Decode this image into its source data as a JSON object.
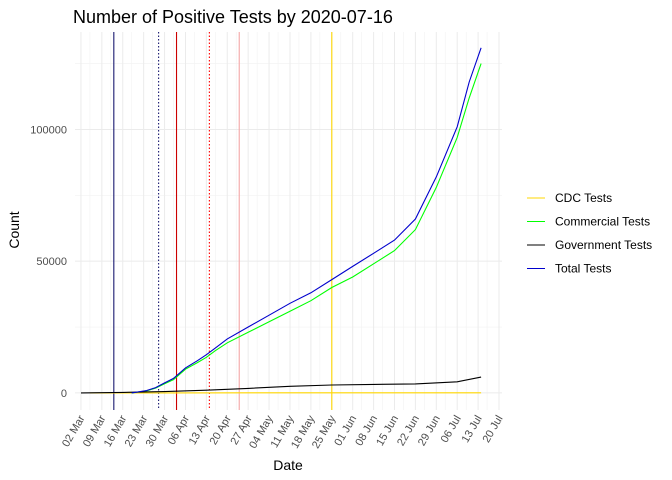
{
  "chart_data": {
    "type": "line",
    "title": "Number of Positive Tests by  2020-07-16",
    "xlabel": "Date",
    "ylabel": "Count",
    "x_tick_labels": [
      "02 Mar",
      "09 Mar",
      "16 Mar",
      "23 Mar",
      "30 Mar",
      "06 Apr",
      "13 Apr",
      "20 Apr",
      "27 Apr",
      "04 May",
      "11 May",
      "18 May",
      "25 May",
      "01 Jun",
      "08 Jun",
      "15 Jun",
      "22 Jun",
      "29 Jun",
      "06 Jul",
      "13 Jul",
      "20 Jul"
    ],
    "y_ticks": [
      0,
      50000,
      100000
    ],
    "y_tick_labels": [
      "0",
      "50000",
      "100000"
    ],
    "xlim": [
      "2020-02-29",
      "2020-07-21"
    ],
    "ylim": [
      -6500,
      137000
    ],
    "grid": true,
    "legend_position": "right",
    "series": [
      {
        "name": "CDC Tests",
        "color": "#FFD700",
        "x": [
          "2020-03-05",
          "2020-03-30",
          "2020-04-30",
          "2020-05-31",
          "2020-06-30",
          "2020-07-14"
        ],
        "y": [
          0,
          10,
          15,
          20,
          25,
          30
        ]
      },
      {
        "name": "Commercial Tests",
        "color": "#00FF00",
        "x": [
          "2020-03-19",
          "2020-03-24",
          "2020-03-27",
          "2020-03-30",
          "2020-04-02",
          "2020-04-06",
          "2020-04-10",
          "2020-04-13",
          "2020-04-16",
          "2020-04-20",
          "2020-04-27",
          "2020-05-04",
          "2020-05-11",
          "2020-05-18",
          "2020-05-25",
          "2020-06-01",
          "2020-06-08",
          "2020-06-15",
          "2020-06-22",
          "2020-06-29",
          "2020-07-06",
          "2020-07-10",
          "2020-07-14"
        ],
        "y": [
          0,
          800,
          1800,
          3500,
          5000,
          9000,
          11500,
          13500,
          16000,
          19000,
          23000,
          27000,
          31000,
          35000,
          40000,
          44000,
          49000,
          54000,
          62000,
          78000,
          97000,
          112000,
          125000
        ]
      },
      {
        "name": "Government Tests",
        "color": "#000000",
        "x": [
          "2020-03-02",
          "2020-03-16",
          "2020-03-30",
          "2020-04-13",
          "2020-04-27",
          "2020-05-11",
          "2020-05-25",
          "2020-06-08",
          "2020-06-22",
          "2020-07-06",
          "2020-07-14"
        ],
        "y": [
          0,
          200,
          500,
          1000,
          1700,
          2500,
          3000,
          3200,
          3400,
          4200,
          6000
        ]
      },
      {
        "name": "Total Tests",
        "color": "#0000CD",
        "x": [
          "2020-03-19",
          "2020-03-24",
          "2020-03-27",
          "2020-03-30",
          "2020-04-02",
          "2020-04-06",
          "2020-04-10",
          "2020-04-13",
          "2020-04-16",
          "2020-04-20",
          "2020-04-27",
          "2020-05-04",
          "2020-05-11",
          "2020-05-18",
          "2020-05-25",
          "2020-06-01",
          "2020-06-08",
          "2020-06-15",
          "2020-06-22",
          "2020-06-29",
          "2020-07-06",
          "2020-07-10",
          "2020-07-14"
        ],
        "y": [
          0,
          900,
          2000,
          3800,
          5500,
          9500,
          12200,
          14500,
          17000,
          20500,
          25000,
          29500,
          34000,
          38000,
          43000,
          48000,
          53000,
          58000,
          66000,
          82000,
          101000,
          118000,
          131000
        ]
      }
    ],
    "vertical_lines": [
      {
        "x": "2020-03-13",
        "color": "#191970",
        "style": "solid"
      },
      {
        "x": "2020-03-28",
        "color": "#191970",
        "style": "dotted"
      },
      {
        "x": "2020-04-03",
        "color": "#CC0000",
        "style": "solid"
      },
      {
        "x": "2020-04-14",
        "color": "#FF0000",
        "style": "dotted"
      },
      {
        "x": "2020-04-24",
        "color": "#F4A6A6",
        "style": "solid"
      },
      {
        "x": "2020-05-25",
        "color": "#FFD700",
        "style": "solid"
      }
    ]
  }
}
